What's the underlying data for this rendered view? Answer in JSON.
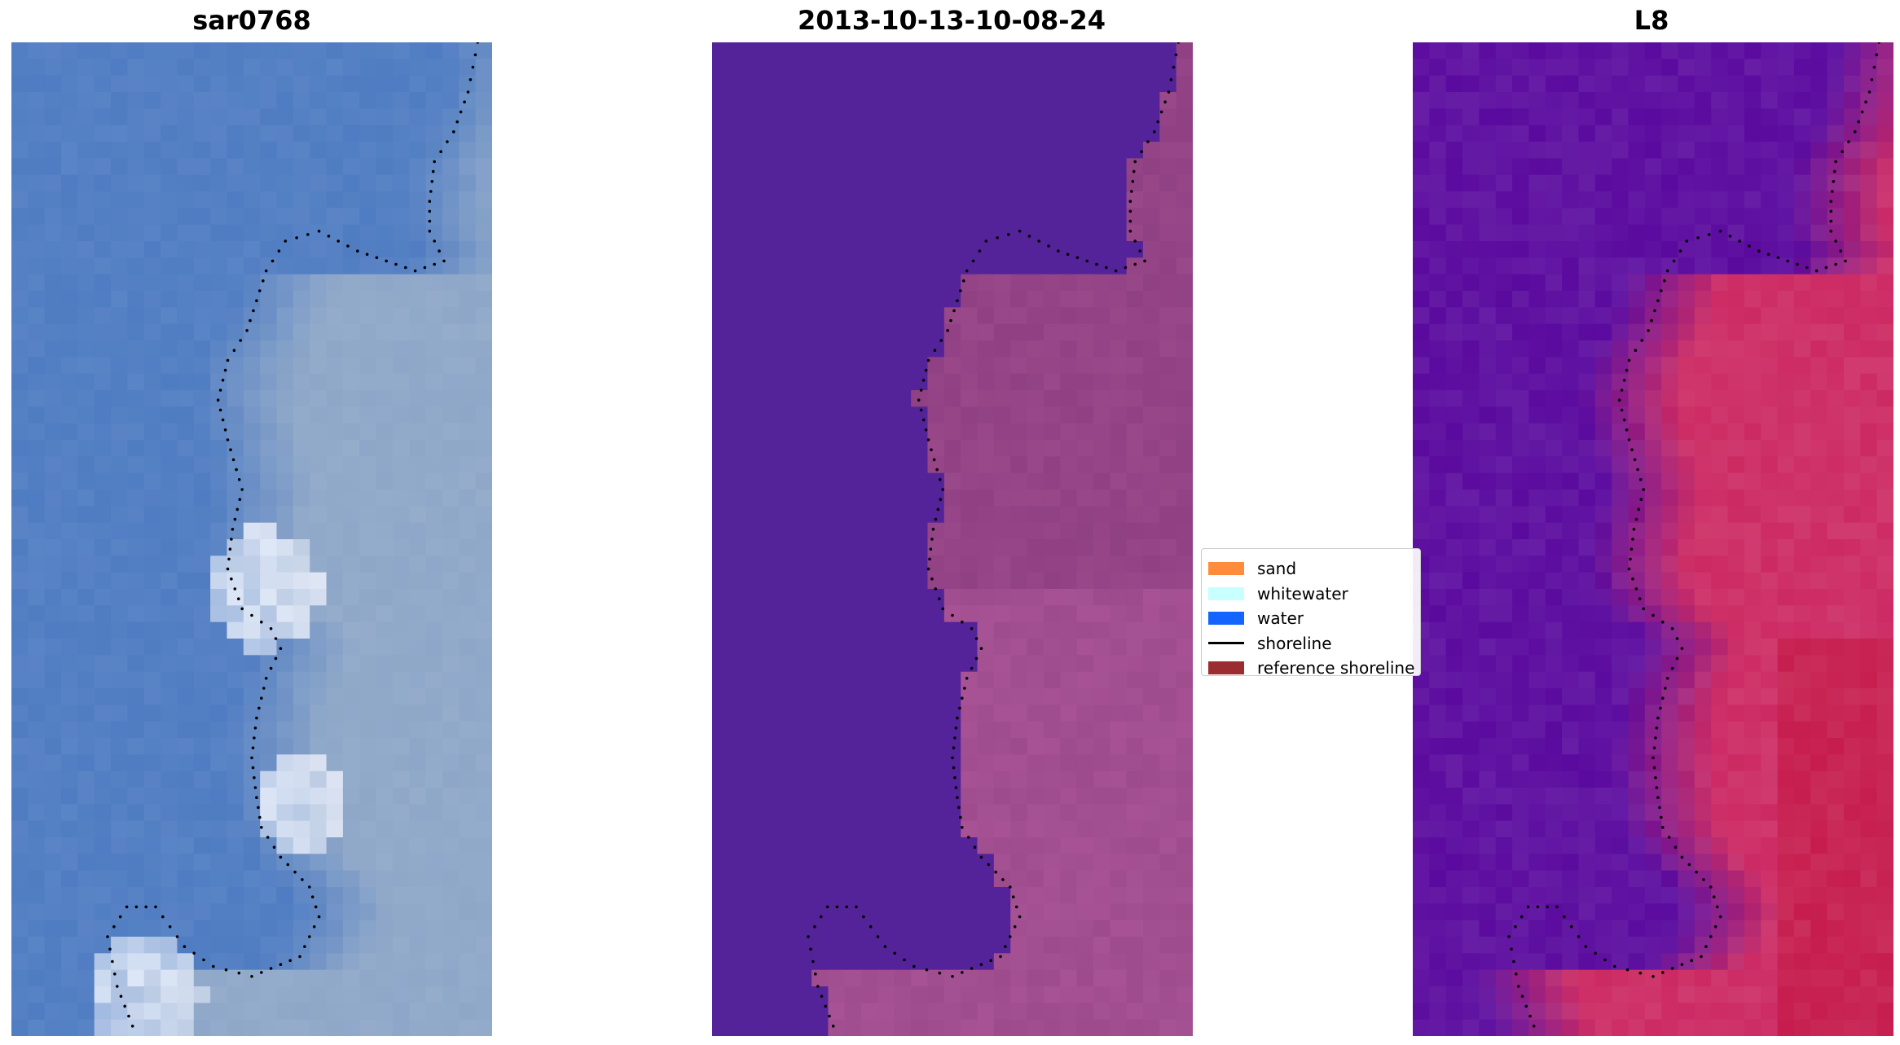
{
  "panels": [
    {
      "title": "sar0768",
      "kind": "rgb"
    },
    {
      "title": "2013-10-13-10-08-24",
      "kind": "classified"
    },
    {
      "title": "L8",
      "kind": "index"
    }
  ],
  "legend": {
    "items": [
      {
        "label": "sand",
        "type": "patch",
        "color": "#ff8c3c"
      },
      {
        "label": "whitewater",
        "type": "patch",
        "color": "#c8ffff"
      },
      {
        "label": "water",
        "type": "patch",
        "color": "#1464ff"
      },
      {
        "label": "shoreline",
        "type": "line",
        "color": "#000000"
      },
      {
        "label": "reference shoreline",
        "type": "patch",
        "color": "#9b2d32"
      }
    ]
  },
  "colors": {
    "rgb_water": "#4f7cc2",
    "rgb_land": "#8ea7c8",
    "rgb_whitewater": "#e8eefa",
    "class_water": "#54239a",
    "class_land": "#8a3c7e",
    "index_water": "#5a0a9e",
    "index_land": "#cc2a62"
  }
}
